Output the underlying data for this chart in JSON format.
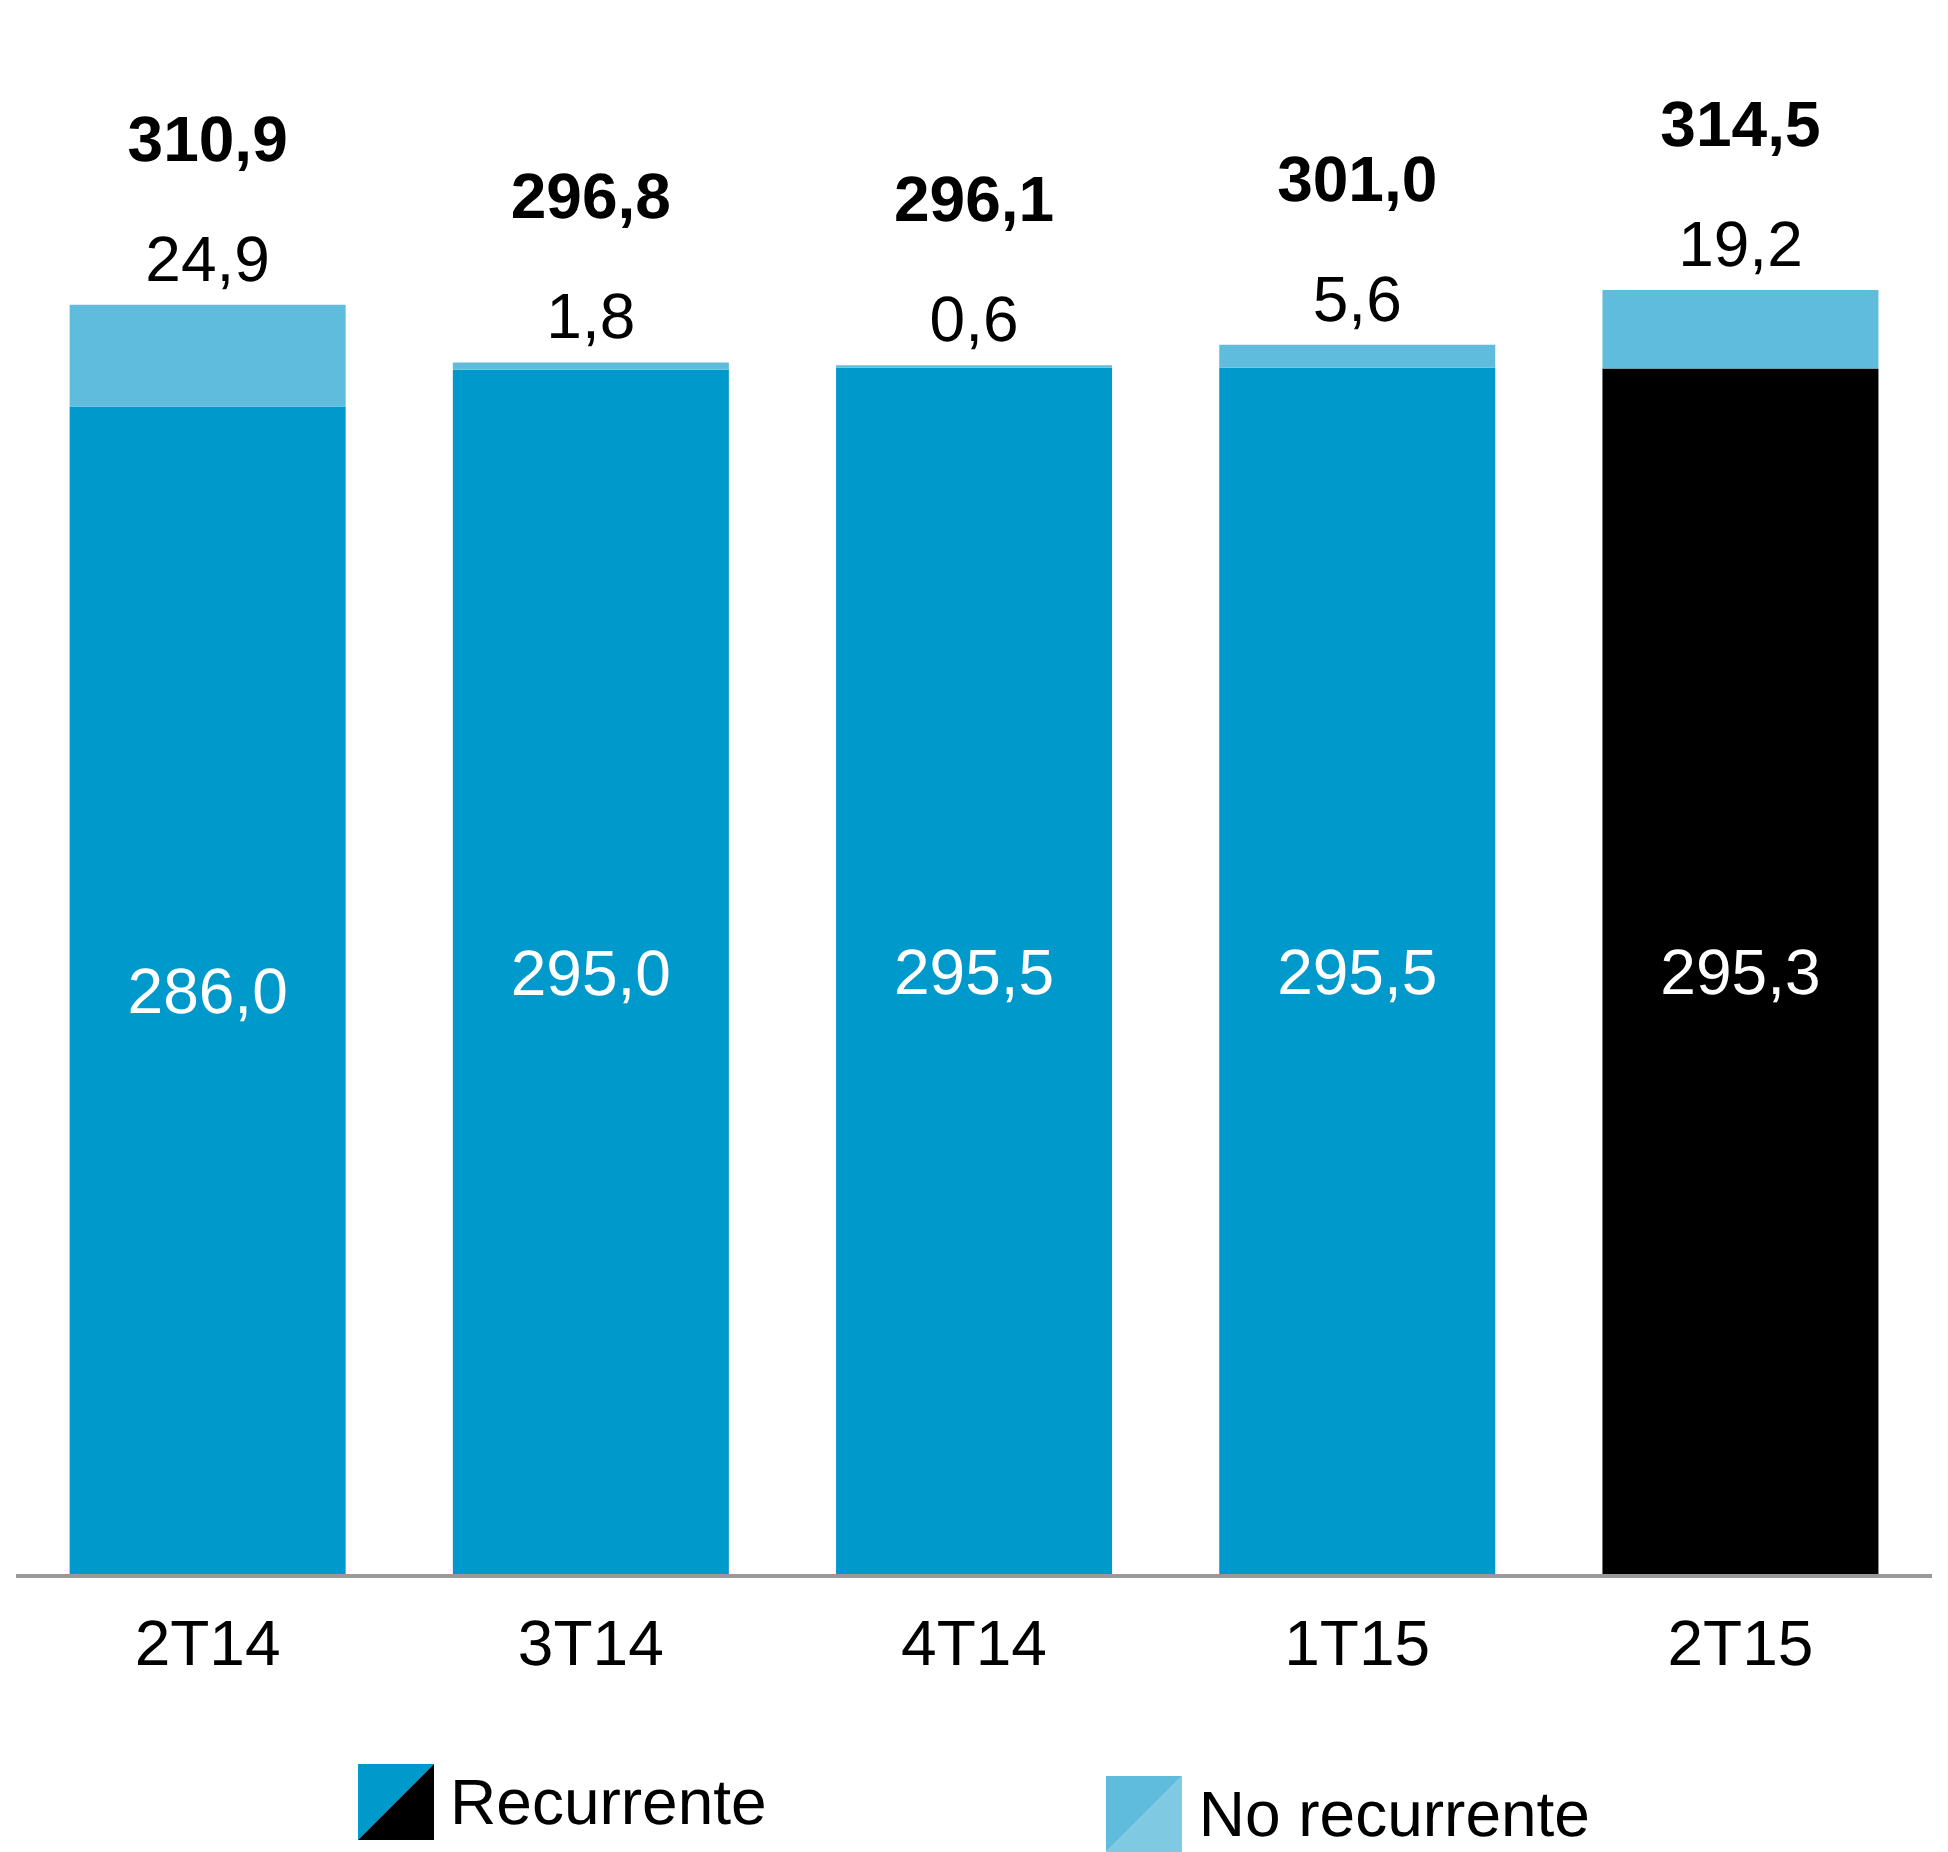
{
  "chart_data": {
    "type": "bar",
    "stacked": true,
    "categories": [
      "2T14",
      "3T14",
      "4T14",
      "1T15",
      "2T15"
    ],
    "series": [
      {
        "name": "Recurrente",
        "color": "#0099cc",
        "colors": [
          "#0099cc",
          "#0099cc",
          "#0099cc",
          "#0099cc",
          "#000000"
        ],
        "values": [
          286.0,
          295.0,
          295.5,
          295.5,
          295.3
        ],
        "value_labels": [
          "286,0",
          "295,0",
          "295,5",
          "295,5",
          "295,3"
        ]
      },
      {
        "name": "No recurrente",
        "color": "#5fbcdc",
        "values": [
          24.9,
          1.8,
          0.6,
          5.6,
          19.2
        ],
        "value_labels": [
          "24,9",
          "1,8",
          "0,6",
          "5,6",
          "19,2"
        ]
      }
    ],
    "totals": [
      "310,9",
      "296,8",
      "296,1",
      "301,0",
      "314,5"
    ],
    "legend": "bottom"
  }
}
